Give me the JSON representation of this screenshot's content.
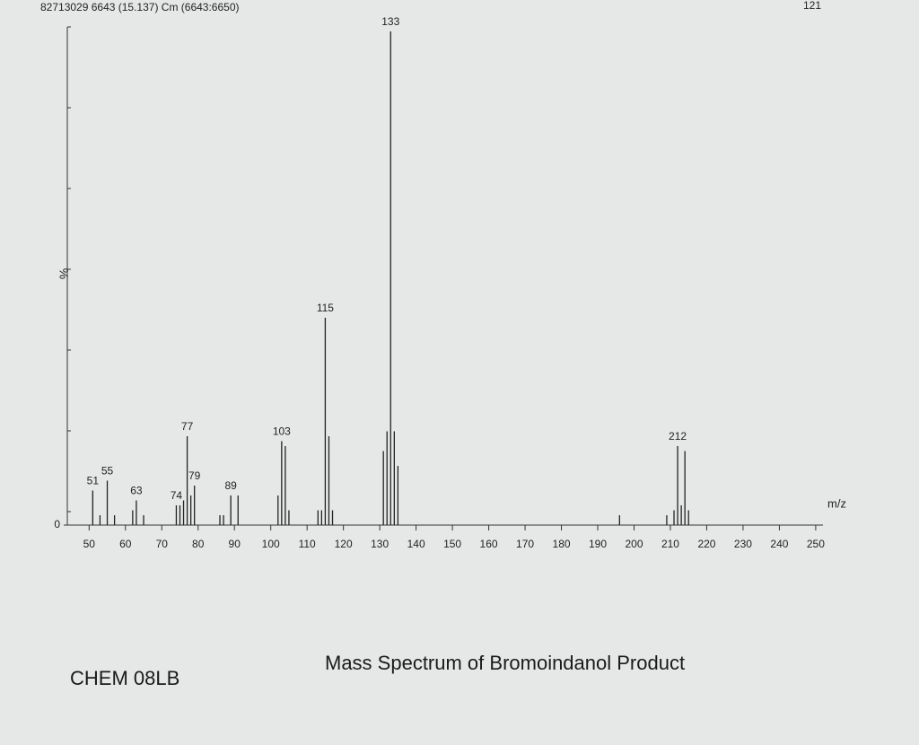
{
  "chart_data": {
    "type": "bar",
    "header": "82713029 6643 (15.137) Cm (6643:6650)",
    "corner_text": "121",
    "title": "Mass Spectrum of Bromoindanol Product",
    "course": "CHEM 08LB",
    "y_label": "%",
    "x_label": "m/z",
    "color": "#222222",
    "x": [
      51,
      53,
      55,
      57,
      62,
      63,
      65,
      74,
      75,
      76,
      77,
      78,
      79,
      86,
      87,
      89,
      91,
      102,
      103,
      104,
      105,
      113,
      114,
      115,
      116,
      117,
      131,
      132,
      133,
      134,
      135,
      196,
      209,
      211,
      212,
      213,
      214,
      215
    ],
    "values": [
      7,
      2,
      9,
      2,
      3,
      5,
      2,
      4,
      4,
      5,
      18,
      6,
      8,
      2,
      2,
      6,
      6,
      6,
      17,
      16,
      3,
      3,
      3,
      42,
      18,
      3,
      15,
      19,
      100,
      19,
      12,
      2,
      2,
      3,
      16,
      4,
      15,
      3
    ],
    "labeled": [
      true,
      false,
      true,
      false,
      false,
      true,
      false,
      true,
      false,
      false,
      true,
      false,
      true,
      false,
      false,
      true,
      false,
      false,
      true,
      false,
      false,
      false,
      false,
      true,
      false,
      false,
      false,
      false,
      true,
      false,
      false,
      false,
      false,
      false,
      true,
      false,
      false,
      false
    ],
    "xlim": [
      44,
      252
    ],
    "xticks": [
      50,
      60,
      70,
      80,
      90,
      100,
      110,
      120,
      130,
      140,
      150,
      160,
      170,
      180,
      190,
      200,
      210,
      220,
      230,
      240,
      250
    ],
    "ylim": [
      0,
      100
    ],
    "yticks": [
      0
    ]
  }
}
